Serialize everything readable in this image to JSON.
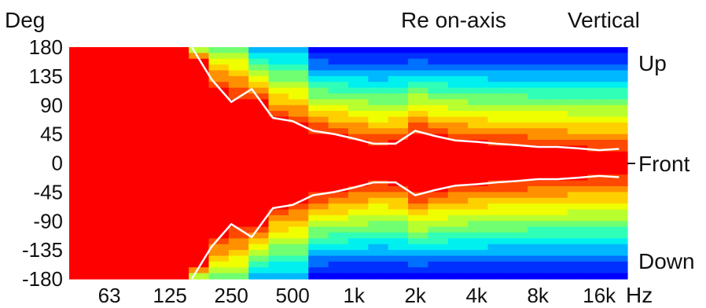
{
  "chart_data": {
    "type": "heatmap",
    "title": "Vertical",
    "subtitle": "Re on-axis",
    "ylabel": "Deg",
    "xlabel": "Hz",
    "ylim": [
      -180,
      180
    ],
    "y_ticks": [
      "180",
      "135",
      "90",
      "45",
      "0",
      "-45",
      "-90",
      "-135",
      "-180"
    ],
    "y_tick_values": [
      180,
      135,
      90,
      45,
      0,
      -45,
      -90,
      -135,
      -180
    ],
    "x_ticks": [
      "63",
      "125",
      "250",
      "500",
      "1k",
      "2k",
      "4k",
      "8k",
      "16k"
    ],
    "x_tick_values": [
      63,
      125,
      250,
      500,
      1000,
      2000,
      4000,
      8000,
      16000
    ],
    "x_scale": "log",
    "xlim": [
      40,
      22000
    ],
    "direction_labels": {
      "up": "Up",
      "front": "Front",
      "down": "Down"
    },
    "contour": {
      "frequency_hz": [
        160,
        200,
        250,
        315,
        400,
        500,
        630,
        800,
        1000,
        1250,
        1600,
        2000,
        2500,
        3150,
        4000,
        5000,
        6300,
        8000,
        10000,
        12500,
        16000,
        20000
      ],
      "upper_deg": [
        180,
        130,
        95,
        115,
        70,
        65,
        50,
        45,
        38,
        30,
        30,
        50,
        42,
        35,
        33,
        30,
        28,
        25,
        25,
        23,
        20,
        22
      ],
      "lower_deg": [
        -180,
        -130,
        -95,
        -115,
        -70,
        -65,
        -50,
        -45,
        -38,
        -30,
        -30,
        -50,
        -42,
        -35,
        -33,
        -30,
        -28,
        -25,
        -25,
        -23,
        -20,
        -22
      ]
    },
    "grid": false,
    "legend": "none"
  }
}
